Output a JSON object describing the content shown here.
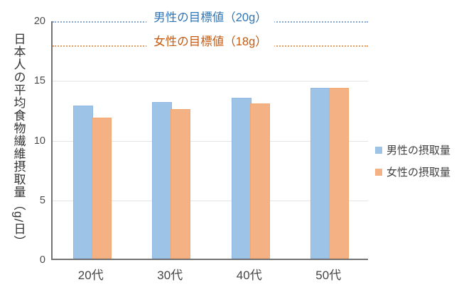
{
  "chart_data": {
    "type": "bar",
    "title": "",
    "ylabel": "日本人の平均食物繊維摂取量（g/日）",
    "xlabel": "",
    "ylim": [
      0,
      20
    ],
    "yticks": [
      0,
      5,
      10,
      15,
      20
    ],
    "gridlines": [
      5,
      10,
      15
    ],
    "grid": true,
    "legend_position": "right",
    "categories": [
      "20代",
      "30代",
      "40代",
      "50代"
    ],
    "series": [
      {
        "name": "男性の摂取量",
        "values": [
          12.8,
          13.1,
          13.5,
          14.3
        ],
        "color": "#9DC3E6"
      },
      {
        "name": "女性の摂取量",
        "values": [
          11.8,
          12.5,
          13.0,
          14.3
        ],
        "color": "#F4B183"
      }
    ],
    "target_lines": [
      {
        "label": "男性の目標値（20g）",
        "value": 20,
        "text_color": "#2E75B6",
        "line_color": "#85ABDB"
      },
      {
        "label": "女性の目標値（18g）",
        "value": 18,
        "text_color": "#C55A11",
        "line_color": "#F09A59"
      }
    ]
  },
  "colors": {
    "axis": "#737373",
    "gridline": "#E4E4E4",
    "tick_label": "#4A4A4A",
    "category_label": "#454545",
    "axis_title": "#333333",
    "legend_text": "#404040",
    "background": "#FFFFFF",
    "male_bar": "#9DC3E6",
    "female_bar": "#F4B183",
    "male_target_text": "#2E75B6",
    "female_target_text": "#C55A11"
  }
}
